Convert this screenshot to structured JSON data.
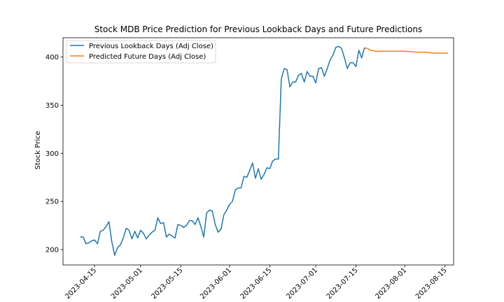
{
  "chart_data": {
    "type": "line",
    "title": "Stock MDB Price Prediction for Previous Lookback Days and Future Predictions",
    "xlabel": "",
    "ylabel": "Stock Price",
    "ylim": [
      184,
      420
    ],
    "xlim": [
      "2023-04-04",
      "2023-08-18"
    ],
    "yticks": [
      200,
      250,
      300,
      350,
      400
    ],
    "xticks": [
      "2023-04-15",
      "2023-05-01",
      "2023-05-15",
      "2023-06-01",
      "2023-06-15",
      "2023-07-01",
      "2023-07-15",
      "2023-08-01",
      "2023-08-15"
    ],
    "grid": false,
    "legend_position": "top-left",
    "series": [
      {
        "name": "Previous Lookback Days (Adj Close)",
        "color": "#1f77b4",
        "points": [
          [
            "2023-04-10",
            213
          ],
          [
            "2023-04-11",
            213
          ],
          [
            "2023-04-12",
            206
          ],
          [
            "2023-04-13",
            207
          ],
          [
            "2023-04-14",
            209
          ],
          [
            "2023-04-15",
            210
          ],
          [
            "2023-04-16",
            206
          ],
          [
            "2023-04-17",
            219
          ],
          [
            "2023-04-18",
            220
          ],
          [
            "2023-04-19",
            224
          ],
          [
            "2023-04-20",
            229
          ],
          [
            "2023-04-21",
            208
          ],
          [
            "2023-04-22",
            194
          ],
          [
            "2023-04-23",
            202
          ],
          [
            "2023-04-24",
            205
          ],
          [
            "2023-04-25",
            212
          ],
          [
            "2023-04-26",
            222
          ],
          [
            "2023-04-27",
            220
          ],
          [
            "2023-04-28",
            211
          ],
          [
            "2023-04-29",
            219
          ],
          [
            "2023-04-30",
            212
          ],
          [
            "2023-05-01",
            220
          ],
          [
            "2023-05-02",
            217
          ],
          [
            "2023-05-03",
            211
          ],
          [
            "2023-05-04",
            215
          ],
          [
            "2023-05-05",
            218
          ],
          [
            "2023-05-06",
            220
          ],
          [
            "2023-05-07",
            233
          ],
          [
            "2023-05-08",
            227
          ],
          [
            "2023-05-09",
            228
          ],
          [
            "2023-05-10",
            213
          ],
          [
            "2023-05-11",
            216
          ],
          [
            "2023-05-12",
            214
          ],
          [
            "2023-05-13",
            212
          ],
          [
            "2023-05-14",
            226
          ],
          [
            "2023-05-15",
            225
          ],
          [
            "2023-05-16",
            223
          ],
          [
            "2023-05-17",
            225
          ],
          [
            "2023-05-18",
            230
          ],
          [
            "2023-05-19",
            230
          ],
          [
            "2023-05-20",
            226
          ],
          [
            "2023-05-21",
            233
          ],
          [
            "2023-05-22",
            224
          ],
          [
            "2023-05-23",
            213
          ],
          [
            "2023-05-24",
            238
          ],
          [
            "2023-05-25",
            241
          ],
          [
            "2023-05-26",
            240
          ],
          [
            "2023-05-27",
            226
          ],
          [
            "2023-05-28",
            218
          ],
          [
            "2023-05-29",
            221
          ],
          [
            "2023-05-30",
            236
          ],
          [
            "2023-05-31",
            241
          ],
          [
            "2023-06-01",
            247
          ],
          [
            "2023-06-02",
            250
          ],
          [
            "2023-06-03",
            262
          ],
          [
            "2023-06-04",
            264
          ],
          [
            "2023-06-05",
            264
          ],
          [
            "2023-06-06",
            276
          ],
          [
            "2023-06-07",
            275
          ],
          [
            "2023-06-08",
            282
          ],
          [
            "2023-06-09",
            290
          ],
          [
            "2023-06-10",
            274
          ],
          [
            "2023-06-11",
            284
          ],
          [
            "2023-06-12",
            273
          ],
          [
            "2023-06-13",
            278
          ],
          [
            "2023-06-14",
            285
          ],
          [
            "2023-06-15",
            284
          ],
          [
            "2023-06-16",
            292
          ],
          [
            "2023-06-17",
            294
          ],
          [
            "2023-06-18",
            294
          ],
          [
            "2023-06-19",
            377
          ],
          [
            "2023-06-20",
            388
          ],
          [
            "2023-06-21",
            387
          ],
          [
            "2023-06-22",
            369
          ],
          [
            "2023-06-23",
            374
          ],
          [
            "2023-06-24",
            374
          ],
          [
            "2023-06-25",
            381
          ],
          [
            "2023-06-26",
            383
          ],
          [
            "2023-06-27",
            374
          ],
          [
            "2023-06-28",
            385
          ],
          [
            "2023-06-29",
            380
          ],
          [
            "2023-06-30",
            380
          ],
          [
            "2023-07-01",
            373
          ],
          [
            "2023-07-02",
            388
          ],
          [
            "2023-07-03",
            389
          ],
          [
            "2023-07-04",
            380
          ],
          [
            "2023-07-05",
            388
          ],
          [
            "2023-07-06",
            397
          ],
          [
            "2023-07-07",
            402
          ],
          [
            "2023-07-08",
            410
          ],
          [
            "2023-07-09",
            411
          ],
          [
            "2023-07-10",
            409
          ],
          [
            "2023-07-11",
            399
          ],
          [
            "2023-07-12",
            388
          ],
          [
            "2023-07-13",
            394
          ],
          [
            "2023-07-14",
            394
          ],
          [
            "2023-07-15",
            390
          ],
          [
            "2023-07-16",
            407
          ],
          [
            "2023-07-17",
            399
          ],
          [
            "2023-07-18",
            410
          ]
        ]
      },
      {
        "name": "Predicted Future Days (Adj Close)",
        "color": "#ff7f0e",
        "points": [
          [
            "2023-07-18",
            409
          ],
          [
            "2023-07-19",
            409
          ],
          [
            "2023-07-20",
            407
          ],
          [
            "2023-07-22",
            406
          ],
          [
            "2023-07-25",
            406
          ],
          [
            "2023-07-29",
            406
          ],
          [
            "2023-08-01",
            406
          ],
          [
            "2023-08-05",
            405
          ],
          [
            "2023-08-08",
            405
          ],
          [
            "2023-08-11",
            404
          ],
          [
            "2023-08-14",
            404
          ],
          [
            "2023-08-16",
            404
          ]
        ]
      }
    ]
  }
}
